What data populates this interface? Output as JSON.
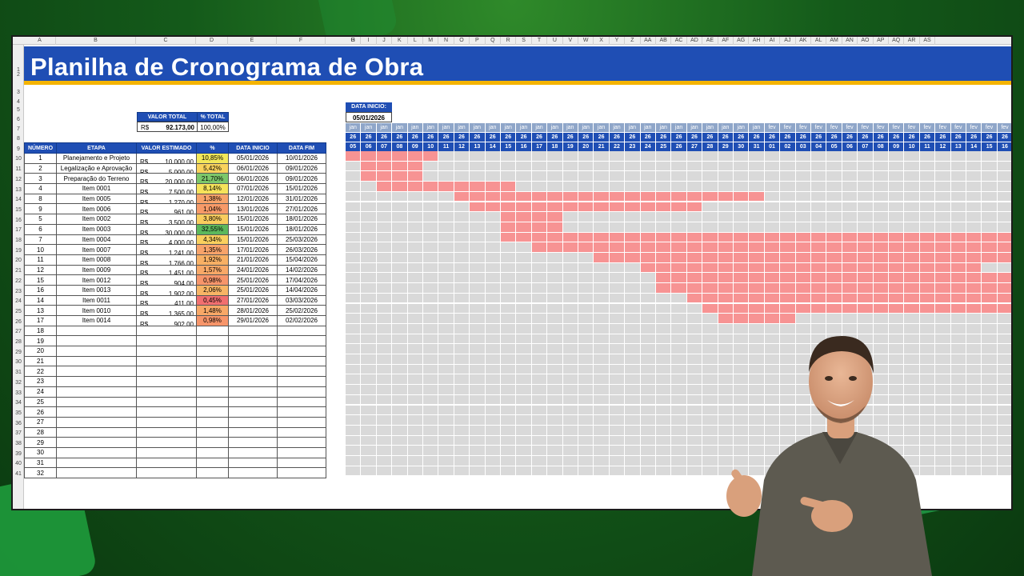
{
  "title": "Planilha de Cronograma de Obra",
  "columns_letters": [
    "A",
    "B",
    "C",
    "D",
    "E",
    "F",
    "G",
    "H",
    "I",
    "J",
    "K",
    "L",
    "M",
    "N",
    "O",
    "P",
    "Q",
    "R",
    "S",
    "T",
    "U",
    "V",
    "W",
    "X",
    "Y",
    "Z",
    "AA",
    "AB",
    "AC",
    "AD",
    "AE",
    "AF",
    "AG",
    "AH",
    "AI",
    "AJ",
    "AK",
    "AL",
    "AM",
    "AN",
    "AO",
    "AP",
    "AQ",
    "AR",
    "AS"
  ],
  "summary": {
    "valor_total_label": "VALOR TOTAL",
    "pct_total_label": "% TOTAL",
    "currency": "R$",
    "valor_total": "92.173,00",
    "pct_total": "100,00%"
  },
  "table": {
    "headers": [
      "NÚMERO",
      "ETAPA",
      "VALOR ESTIMADO",
      "%",
      "DATA INICIO",
      "DATA FIM"
    ],
    "rows": [
      {
        "num": "1",
        "etapa": "Planejamento e Projeto",
        "valor": "10.000,00",
        "pct": "10,85%",
        "pct_color": "#f2e85a",
        "inicio": "05/01/2026",
        "fim": "10/01/2026"
      },
      {
        "num": "2",
        "etapa": "Legalização e Aprovação",
        "valor": "5.000,00",
        "pct": "5,42%",
        "pct_color": "#f9d35c",
        "inicio": "06/01/2026",
        "fim": "09/01/2026"
      },
      {
        "num": "3",
        "etapa": "Preparação do Terreno",
        "valor": "20.000,00",
        "pct": "21,70%",
        "pct_color": "#7cc76a",
        "inicio": "06/01/2026",
        "fim": "09/01/2026"
      },
      {
        "num": "4",
        "etapa": "Item 0001",
        "valor": "7.500,00",
        "pct": "8,14%",
        "pct_color": "#f6e35a",
        "inicio": "07/01/2026",
        "fim": "15/01/2026"
      },
      {
        "num": "8",
        "etapa": "Item 0005",
        "valor": "1.270,00",
        "pct": "1,38%",
        "pct_color": "#f7a36a",
        "inicio": "12/01/2026",
        "fim": "31/01/2026"
      },
      {
        "num": "9",
        "etapa": "Item 0006",
        "valor": "961,00",
        "pct": "1,04%",
        "pct_color": "#f79a68",
        "inicio": "13/01/2026",
        "fim": "27/01/2026"
      },
      {
        "num": "5",
        "etapa": "Item 0002",
        "valor": "3.500,00",
        "pct": "3,80%",
        "pct_color": "#f9cd5e",
        "inicio": "15/01/2026",
        "fim": "18/01/2026"
      },
      {
        "num": "6",
        "etapa": "Item 0003",
        "valor": "30.000,00",
        "pct": "32,55%",
        "pct_color": "#5cb85c",
        "inicio": "15/01/2026",
        "fim": "18/01/2026"
      },
      {
        "num": "7",
        "etapa": "Item 0004",
        "valor": "4.000,00",
        "pct": "4,34%",
        "pct_color": "#f9d05e",
        "inicio": "15/01/2026",
        "fim": "25/03/2026"
      },
      {
        "num": "10",
        "etapa": "Item 0007",
        "valor": "1.241,00",
        "pct": "1,35%",
        "pct_color": "#f7a36a",
        "inicio": "17/01/2026",
        "fim": "26/03/2026"
      },
      {
        "num": "11",
        "etapa": "Item 0008",
        "valor": "1.766,00",
        "pct": "1,92%",
        "pct_color": "#f8b064",
        "inicio": "21/01/2026",
        "fim": "15/04/2026"
      },
      {
        "num": "12",
        "etapa": "Item 0009",
        "valor": "1.451,00",
        "pct": "1,57%",
        "pct_color": "#f8a867",
        "inicio": "24/01/2026",
        "fim": "14/02/2026"
      },
      {
        "num": "15",
        "etapa": "Item 0012",
        "valor": "904,00",
        "pct": "0,98%",
        "pct_color": "#f7956a",
        "inicio": "25/01/2026",
        "fim": "17/04/2026"
      },
      {
        "num": "16",
        "etapa": "Item 0013",
        "valor": "1.902,00",
        "pct": "2,06%",
        "pct_color": "#f8b565",
        "inicio": "25/01/2026",
        "fim": "14/04/2026"
      },
      {
        "num": "14",
        "etapa": "Item 0011",
        "valor": "411,00",
        "pct": "0,45%",
        "pct_color": "#f26f6f",
        "inicio": "27/01/2026",
        "fim": "03/03/2026"
      },
      {
        "num": "13",
        "etapa": "Item 0010",
        "valor": "1.365,00",
        "pct": "1,48%",
        "pct_color": "#f8a867",
        "inicio": "28/01/2026",
        "fim": "25/02/2026"
      },
      {
        "num": "17",
        "etapa": "Item 0014",
        "valor": "902,00",
        "pct": "0,98%",
        "pct_color": "#f7956a",
        "inicio": "29/01/2026",
        "fim": "02/02/2026"
      }
    ],
    "empty_numbers": [
      "18",
      "19",
      "20",
      "21",
      "22",
      "23",
      "24",
      "25",
      "26",
      "27",
      "28",
      "29",
      "30",
      "31",
      "32"
    ]
  },
  "gantt": {
    "data_inicio_label": "DATA INICIO:",
    "data_inicio": "05/01/2026",
    "months": [
      "jan",
      "jan",
      "jan",
      "jan",
      "jan",
      "jan",
      "jan",
      "jan",
      "jan",
      "jan",
      "jan",
      "jan",
      "jan",
      "jan",
      "jan",
      "jan",
      "jan",
      "jan",
      "jan",
      "jan",
      "jan",
      "jan",
      "jan",
      "jan",
      "jan",
      "jan",
      "jan",
      "fev",
      "fev",
      "fev",
      "fev",
      "fev",
      "fev",
      "fev",
      "fev",
      "fev",
      "fev",
      "fev",
      "fev",
      "fev",
      "fev",
      "fev",
      "fev"
    ],
    "years": [
      "26",
      "26",
      "26",
      "26",
      "26",
      "26",
      "26",
      "26",
      "26",
      "26",
      "26",
      "26",
      "26",
      "26",
      "26",
      "26",
      "26",
      "26",
      "26",
      "26",
      "26",
      "26",
      "26",
      "26",
      "26",
      "26",
      "26",
      "26",
      "26",
      "26",
      "26",
      "26",
      "26",
      "26",
      "26",
      "26",
      "26",
      "26",
      "26",
      "26",
      "26",
      "26",
      "26"
    ],
    "days": [
      "05",
      "06",
      "07",
      "08",
      "09",
      "10",
      "11",
      "12",
      "13",
      "14",
      "15",
      "16",
      "17",
      "18",
      "19",
      "20",
      "21",
      "22",
      "23",
      "24",
      "25",
      "26",
      "27",
      "28",
      "29",
      "30",
      "31",
      "01",
      "02",
      "03",
      "04",
      "05",
      "06",
      "07",
      "08",
      "09",
      "10",
      "11",
      "12",
      "13",
      "14",
      "15",
      "16"
    ],
    "bar_color": "#f79393",
    "empty_color": "#d9d9d9",
    "total_rows": 32
  },
  "row_numbers": [
    "1",
    "2",
    "3",
    "4",
    "5",
    "6",
    "7",
    "8",
    "9",
    "10",
    "11",
    "12",
    "13",
    "14",
    "15",
    "16",
    "17",
    "18",
    "19",
    "20",
    "21",
    "22",
    "23",
    "24",
    "25",
    "26",
    "27",
    "28",
    "29",
    "30",
    "31",
    "32",
    "33",
    "34",
    "35",
    "36",
    "37",
    "38",
    "39",
    "40",
    "41"
  ]
}
